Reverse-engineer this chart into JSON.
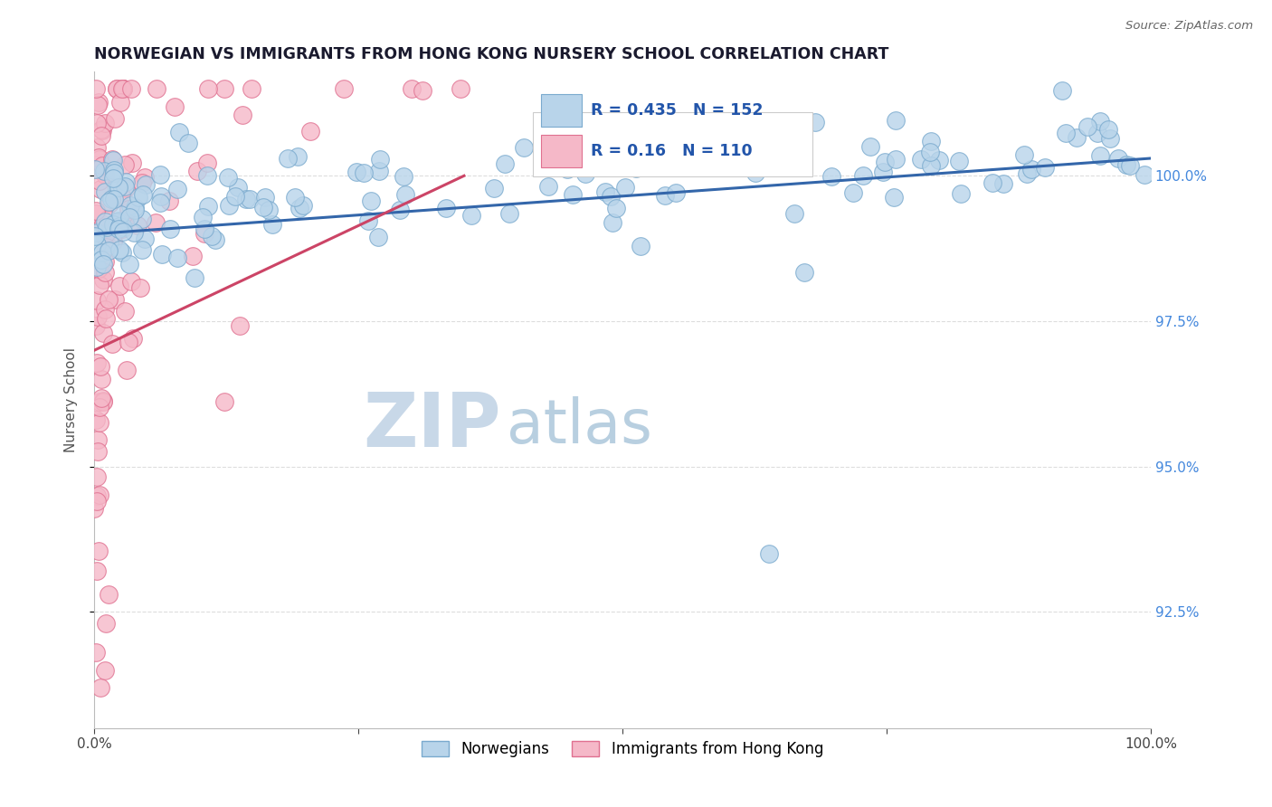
{
  "title": "NORWEGIAN VS IMMIGRANTS FROM HONG KONG NURSERY SCHOOL CORRELATION CHART",
  "source": "Source: ZipAtlas.com",
  "ylabel": "Nursery School",
  "xmin": 0.0,
  "xmax": 100.0,
  "ymin": 90.5,
  "ymax": 101.8,
  "yticks": [
    92.5,
    95.0,
    97.5,
    100.0
  ],
  "ytick_labels": [
    "92.5%",
    "95.0%",
    "97.5%",
    "100.0%"
  ],
  "legend_blue_label": "Norwegians",
  "legend_pink_label": "Immigrants from Hong Kong",
  "R_blue": 0.435,
  "N_blue": 152,
  "R_pink": 0.16,
  "N_pink": 110,
  "blue_color": "#b8d4ea",
  "blue_edge": "#7aaace",
  "pink_color": "#f5b8c8",
  "pink_edge": "#e07090",
  "blue_line_color": "#3366aa",
  "pink_line_color": "#cc4466",
  "watermark_zip_color": "#c8d8e8",
  "watermark_atlas_color": "#b8cfe0",
  "background_color": "#ffffff",
  "title_color": "#1a1a2e",
  "title_fontsize": 12.5,
  "axis_label_color": "#555555",
  "right_tick_color": "#4488dd",
  "legend_r_color": "#2255aa",
  "grid_color": "#dddddd"
}
